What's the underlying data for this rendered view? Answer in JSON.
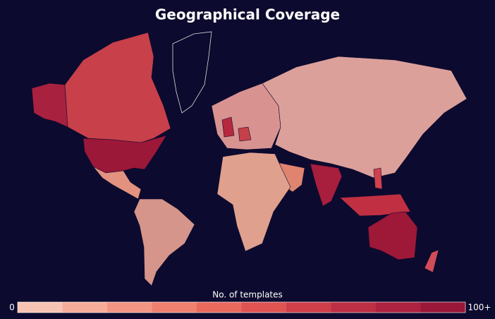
{
  "title": "Geographical Coverage",
  "legend": {
    "title": "No. of templates",
    "min_label": "0",
    "max_label": "100+",
    "colors": [
      "#f7c4b4",
      "#f5ad9a",
      "#f29683",
      "#ef7f6e",
      "#e9695d",
      "#df5352",
      "#cf3f4a",
      "#bd2f44",
      "#ac2240",
      "#9a173a"
    ]
  }
}
